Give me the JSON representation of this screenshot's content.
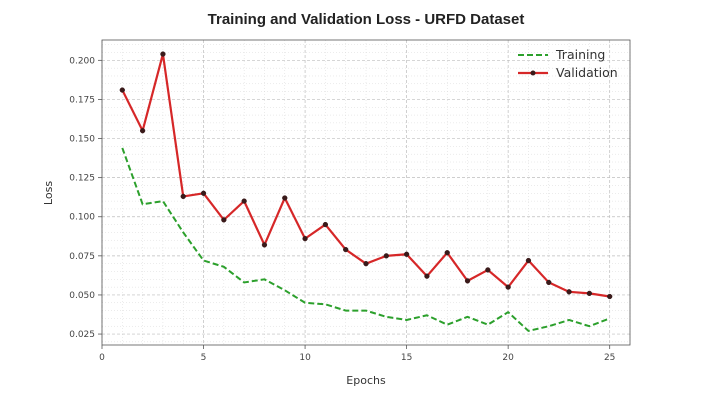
{
  "chart_data": {
    "type": "line",
    "title": "Training and Validation Loss - URFD Dataset",
    "xlabel": "Epochs",
    "ylabel": "Loss",
    "xlim": [
      0,
      26
    ],
    "ylim": [
      0.018,
      0.213
    ],
    "xticks": [
      0,
      5,
      10,
      15,
      20,
      25
    ],
    "yticks": [
      0.025,
      0.05,
      0.075,
      0.1,
      0.125,
      0.15,
      0.175,
      0.2
    ],
    "xtick_labels": [
      "0",
      "5",
      "10",
      "15",
      "20",
      "25"
    ],
    "ytick_labels": [
      "0.025",
      "0.050",
      "0.075",
      "0.100",
      "0.125",
      "0.150",
      "0.175",
      "0.200"
    ],
    "grid": true,
    "legend_position": "top-right",
    "x": [
      1,
      2,
      3,
      4,
      5,
      6,
      7,
      8,
      9,
      10,
      11,
      12,
      13,
      14,
      15,
      16,
      17,
      18,
      19,
      20,
      21,
      22,
      23,
      24,
      25
    ],
    "series": [
      {
        "name": "Training",
        "color": "#2ca02c",
        "style": "dashed",
        "values": [
          0.144,
          0.108,
          0.11,
          0.09,
          0.072,
          0.068,
          0.058,
          0.06,
          0.053,
          0.045,
          0.044,
          0.04,
          0.04,
          0.036,
          0.034,
          0.037,
          0.031,
          0.036,
          0.031,
          0.039,
          0.027,
          0.03,
          0.034,
          0.03,
          0.035
        ]
      },
      {
        "name": "Validation",
        "color": "#d62728",
        "style": "solid-markers",
        "values": [
          0.181,
          0.155,
          0.204,
          0.113,
          0.115,
          0.098,
          0.11,
          0.082,
          0.112,
          0.086,
          0.095,
          0.079,
          0.07,
          0.075,
          0.076,
          0.062,
          0.077,
          0.059,
          0.066,
          0.055,
          0.072,
          0.058,
          0.052,
          0.051,
          0.049
        ]
      }
    ]
  }
}
